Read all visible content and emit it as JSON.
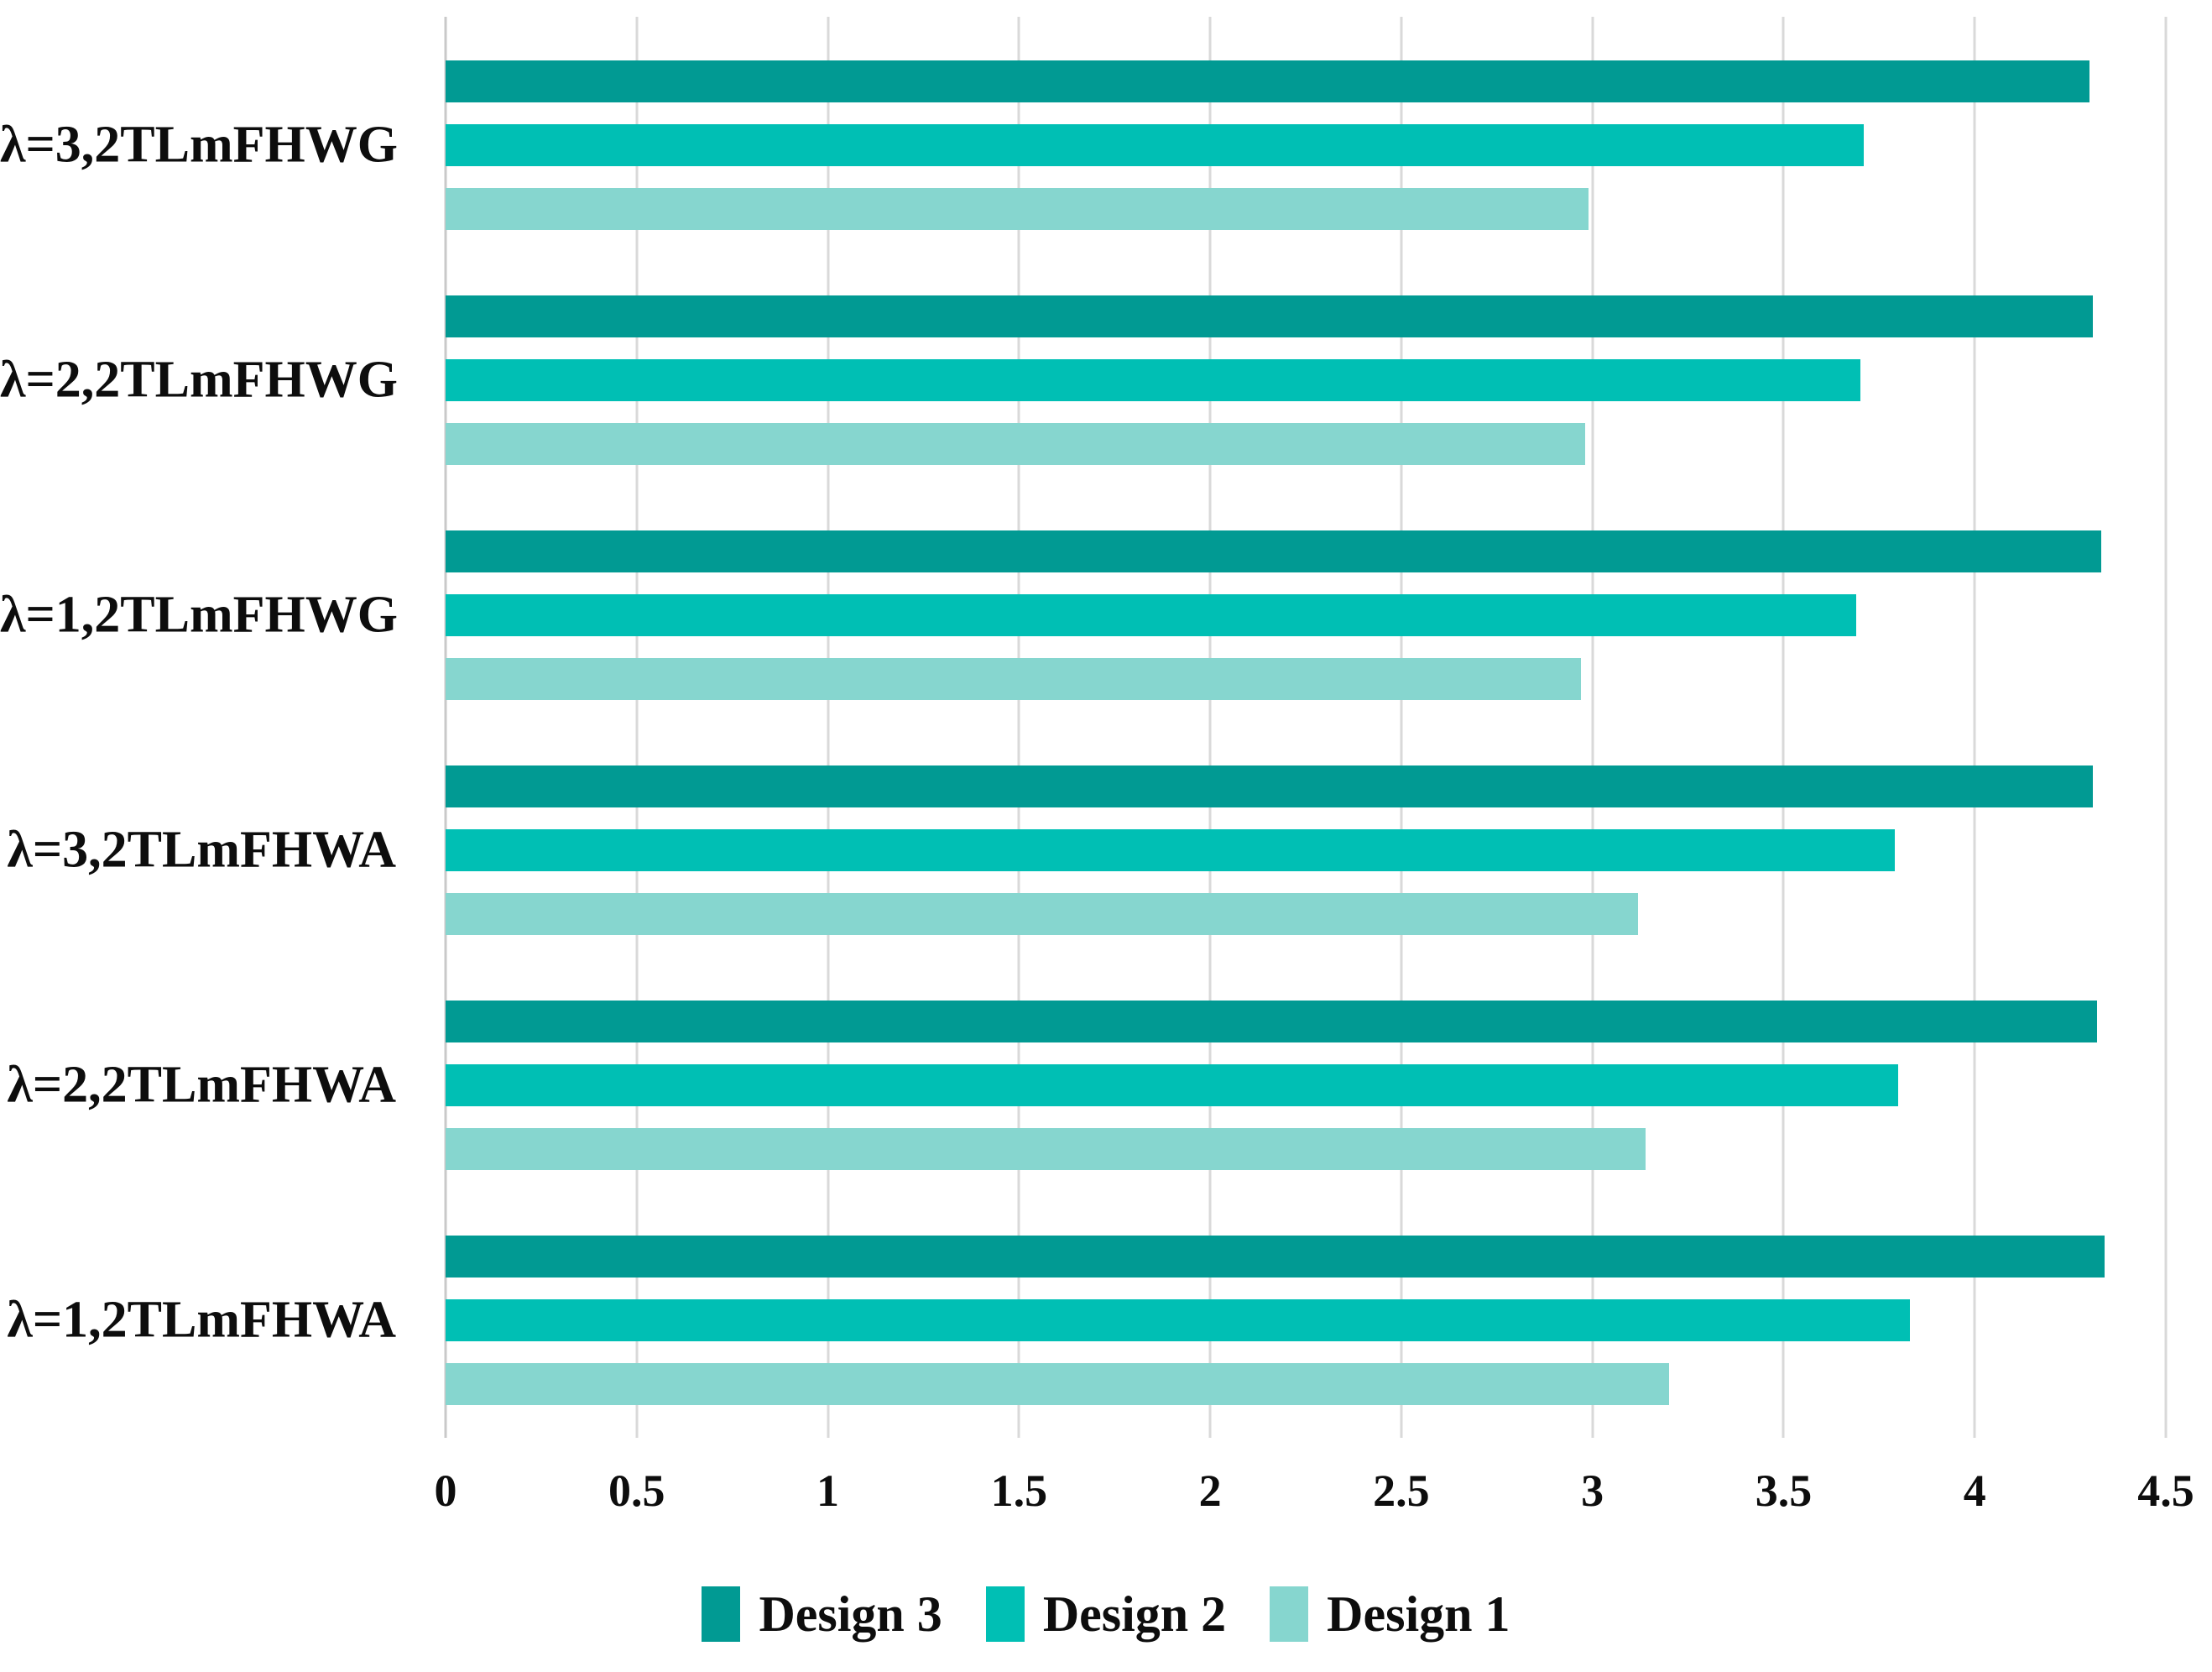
{
  "chart_data": {
    "type": "bar",
    "orientation": "horizontal",
    "title": "",
    "xlabel": "",
    "ylabel": "",
    "categories": [
      "λ=3,2TLmFHWG",
      "λ=2,2TLmFHWG",
      "λ=1,2TLmFHWG",
      "λ=3,2TLmFHWA",
      "λ=2,2TLmFHWA",
      "λ=1,2TLmFHWA"
    ],
    "series": [
      {
        "name": "Design 3",
        "color": "#019A93",
        "values": [
          4.3,
          4.31,
          4.33,
          4.31,
          4.32,
          4.34
        ]
      },
      {
        "name": "Design 2",
        "color": "#00BFB4",
        "values": [
          3.71,
          3.7,
          3.69,
          3.79,
          3.8,
          3.83
        ]
      },
      {
        "name": "Design 1",
        "color": "#86D6CF",
        "values": [
          2.99,
          2.98,
          2.97,
          3.12,
          3.14,
          3.2
        ]
      }
    ],
    "xlim": [
      0,
      4.5
    ],
    "x_ticks": [
      "0",
      "0.5",
      "1",
      "1.5",
      "2",
      "2.5",
      "3",
      "3.5",
      "4",
      "4.5"
    ],
    "grid": "vertical-only",
    "legend_position": "bottom",
    "legend_order": [
      "Design 3",
      "Design 2",
      "Design 1"
    ],
    "colors": {
      "gridline": "#D9D9D9",
      "axis_line": "#C9C9C9",
      "text": "#0D0D0D",
      "background": "#FFFFFF"
    }
  }
}
